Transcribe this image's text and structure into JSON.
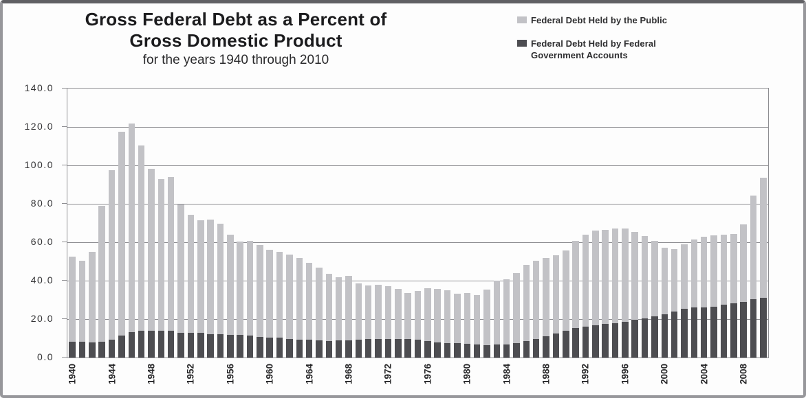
{
  "chart_data": {
    "type": "bar",
    "stacked": true,
    "title": "Gross Federal Debt as a Percent of Gross Domestic Product",
    "title_lines": [
      "Gross Federal Debt as a Percent of",
      "Gross Domestic Product"
    ],
    "subtitle": "for the years 1940 through 2010",
    "xlabel": "",
    "ylabel": "",
    "ylim": [
      0,
      140
    ],
    "y_ticks": [
      "0.0",
      "20.0",
      "40.0",
      "60.0",
      "80.0",
      "100.0",
      "120.0",
      "140.0"
    ],
    "x_tick_years": [
      1940,
      1944,
      1948,
      1952,
      1956,
      1960,
      1964,
      1968,
      1972,
      1976,
      1980,
      1984,
      1988,
      1992,
      1996,
      2000,
      2004,
      2008
    ],
    "grid": true,
    "legend_position": "top-right",
    "years": [
      1940,
      1941,
      1942,
      1943,
      1944,
      1945,
      1946,
      1947,
      1948,
      1949,
      1950,
      1951,
      1952,
      1953,
      1954,
      1955,
      1956,
      1957,
      1958,
      1959,
      1960,
      1961,
      1962,
      1963,
      1964,
      1965,
      1966,
      1967,
      1968,
      1969,
      1970,
      1971,
      1972,
      1973,
      1974,
      1975,
      1976,
      1977,
      1978,
      1979,
      1980,
      1981,
      1982,
      1983,
      1984,
      1985,
      1986,
      1987,
      1988,
      1989,
      1990,
      1991,
      1992,
      1993,
      1994,
      1995,
      1996,
      1997,
      1998,
      1999,
      2000,
      2001,
      2002,
      2003,
      2004,
      2005,
      2006,
      2007,
      2008,
      2009,
      2010
    ],
    "series": [
      {
        "name": "Federal Debt Held by the Public",
        "color": "#c2c2c6",
        "stack": "top",
        "values": [
          44.2,
          42.3,
          47.0,
          70.9,
          88.3,
          106.2,
          108.6,
          96.2,
          84.3,
          79.0,
          80.2,
          66.8,
          61.6,
          58.6,
          59.5,
          57.3,
          52.0,
          48.7,
          49.2,
          47.8,
          45.7,
          44.9,
          43.7,
          42.4,
          40.1,
          37.9,
          34.9,
          32.9,
          33.4,
          29.3,
          28.0,
          28.1,
          27.4,
          26.1,
          23.9,
          25.3,
          27.5,
          27.8,
          27.4,
          25.6,
          26.1,
          25.8,
          28.7,
          33.0,
          34.0,
          36.3,
          39.5,
          40.6,
          40.9,
          40.6,
          42.1,
          45.3,
          48.1,
          49.3,
          49.2,
          49.1,
          48.4,
          45.9,
          43.0,
          39.4,
          34.7,
          32.5,
          33.6,
          35.6,
          36.8,
          36.9,
          36.5,
          36.2,
          40.5,
          53.8,
          62.3
        ]
      },
      {
        "name": "Federal Debt Held by Federal Government Accounts",
        "color": "#4d4d51",
        "stack": "bottom",
        "values": [
          8.2,
          8.1,
          7.9,
          8.2,
          9.3,
          11.3,
          13.1,
          14.1,
          14.1,
          14.0,
          13.9,
          12.8,
          12.7,
          12.7,
          12.3,
          12.2,
          11.8,
          11.8,
          11.5,
          10.7,
          10.4,
          10.2,
          9.7,
          9.4,
          9.3,
          9.0,
          8.7,
          9.0,
          9.1,
          9.3,
          9.6,
          9.7,
          9.6,
          9.6,
          9.7,
          9.4,
          8.7,
          8.0,
          7.6,
          7.6,
          7.3,
          6.7,
          6.6,
          6.9,
          6.7,
          7.5,
          8.7,
          9.8,
          11.0,
          12.5,
          13.8,
          15.4,
          16.0,
          16.8,
          17.4,
          17.9,
          18.7,
          19.5,
          20.2,
          21.5,
          22.6,
          23.9,
          25.2,
          26.0,
          26.1,
          26.6,
          27.4,
          28.2,
          28.9,
          30.4,
          31.1
        ]
      }
    ]
  }
}
